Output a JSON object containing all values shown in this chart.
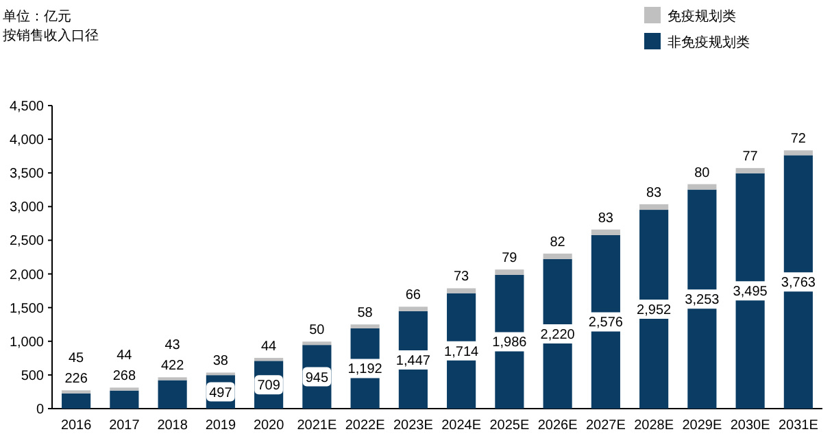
{
  "chart_data": {
    "type": "bar",
    "stacked": true,
    "categories": [
      "2016",
      "2017",
      "2018",
      "2019",
      "2020",
      "2021E",
      "2022E",
      "2023E",
      "2024E",
      "2025E",
      "2026E",
      "2027E",
      "2028E",
      "2029E",
      "2030E",
      "2031E"
    ],
    "series": [
      {
        "name": "非免疫规划类",
        "color": "#0b3c64",
        "values": [
          226,
          268,
          422,
          497,
          709,
          945,
          1192,
          1447,
          1714,
          1986,
          2220,
          2576,
          2952,
          3253,
          3495,
          3763
        ],
        "value_labels": [
          "226",
          "268",
          "422",
          "497",
          "709",
          "945",
          "1,192",
          "1,447",
          "1,714",
          "1,986",
          "2,220",
          "2,576",
          "2,952",
          "3,253",
          "3,495",
          "3,763"
        ]
      },
      {
        "name": "免疫规划类",
        "color": "#c0c0c0",
        "values": [
          45,
          44,
          43,
          38,
          44,
          50,
          58,
          66,
          73,
          79,
          82,
          83,
          83,
          80,
          77,
          72
        ],
        "value_labels": [
          "45",
          "44",
          "43",
          "38",
          "44",
          "50",
          "58",
          "66",
          "73",
          "79",
          "82",
          "83",
          "83",
          "80",
          "77",
          "72"
        ]
      }
    ],
    "ylim": [
      0,
      4500
    ],
    "yticks": [
      {
        "value": 0,
        "label": "0"
      },
      {
        "value": 500,
        "label": "500"
      },
      {
        "value": 1000,
        "label": "1,000"
      },
      {
        "value": 1500,
        "label": "1,500"
      },
      {
        "value": 2000,
        "label": "2,000"
      },
      {
        "value": 2500,
        "label": "2,500"
      },
      {
        "value": 3000,
        "label": "3,000"
      },
      {
        "value": 3500,
        "label": "3,500"
      },
      {
        "value": 4000,
        "label": "4,000"
      },
      {
        "value": 4500,
        "label": "4,500"
      }
    ],
    "grid": false,
    "legend": "top right",
    "annotations": [
      "单位：亿元",
      "按销售收入口径"
    ]
  }
}
